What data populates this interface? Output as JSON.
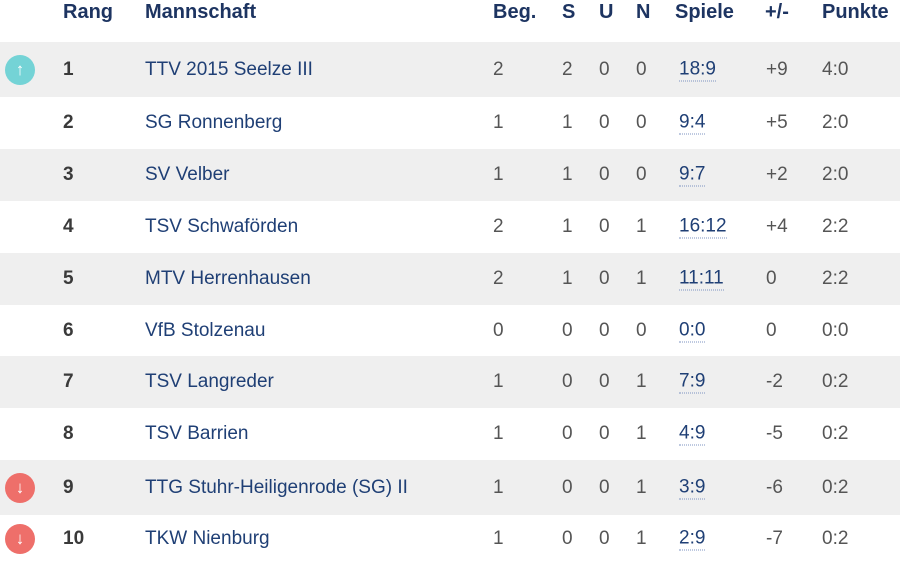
{
  "headers": {
    "rang": "Rang",
    "team": "Mannschaft",
    "beg": "Beg.",
    "s": "S",
    "u": "U",
    "n": "N",
    "spiele": "Spiele",
    "diff": "+/-",
    "punkte": "Punkte"
  },
  "colors": {
    "up": "#74d3d6",
    "down": "#ee6f6a"
  },
  "rows": [
    {
      "rang": "1",
      "team": "TTV 2015 Seelze III",
      "beg": "2",
      "s": "2",
      "u": "0",
      "n": "0",
      "spiele": "18:9",
      "diff": "+9",
      "punkte": "4:0",
      "trend": "up",
      "icon": "↑"
    },
    {
      "rang": "2",
      "team": "SG Ronnenberg",
      "beg": "1",
      "s": "1",
      "u": "0",
      "n": "0",
      "spiele": "9:4",
      "diff": "+5",
      "punkte": "2:0"
    },
    {
      "rang": "3",
      "team": "SV Velber",
      "beg": "1",
      "s": "1",
      "u": "0",
      "n": "0",
      "spiele": "9:7",
      "diff": "+2",
      "punkte": "2:0"
    },
    {
      "rang": "4",
      "team": "TSV Schwaförden",
      "beg": "2",
      "s": "1",
      "u": "0",
      "n": "1",
      "spiele": "16:12",
      "diff": "+4",
      "punkte": "2:2"
    },
    {
      "rang": "5",
      "team": "MTV Herrenhausen",
      "beg": "2",
      "s": "1",
      "u": "0",
      "n": "1",
      "spiele": "11:11",
      "diff": "0",
      "punkte": "2:2"
    },
    {
      "rang": "6",
      "team": "VfB Stolzenau",
      "beg": "0",
      "s": "0",
      "u": "0",
      "n": "0",
      "spiele": "0:0",
      "diff": "0",
      "punkte": "0:0"
    },
    {
      "rang": "7",
      "team": "TSV Langreder",
      "beg": "1",
      "s": "0",
      "u": "0",
      "n": "1",
      "spiele": "7:9",
      "diff": "-2",
      "punkte": "0:2"
    },
    {
      "rang": "8",
      "team": "TSV Barrien",
      "beg": "1",
      "s": "0",
      "u": "0",
      "n": "1",
      "spiele": "4:9",
      "diff": "-5",
      "punkte": "0:2"
    },
    {
      "rang": "9",
      "team": "TTG Stuhr-Heiligenrode (SG) II",
      "beg": "1",
      "s": "0",
      "u": "0",
      "n": "1",
      "spiele": "3:9",
      "diff": "-6",
      "punkte": "0:2",
      "trend": "down",
      "icon": "↓"
    },
    {
      "rang": "10",
      "team": "TKW Nienburg",
      "beg": "1",
      "s": "0",
      "u": "0",
      "n": "1",
      "spiele": "2:9",
      "diff": "-7",
      "punkte": "0:2",
      "trend": "down",
      "icon": "↓"
    }
  ]
}
